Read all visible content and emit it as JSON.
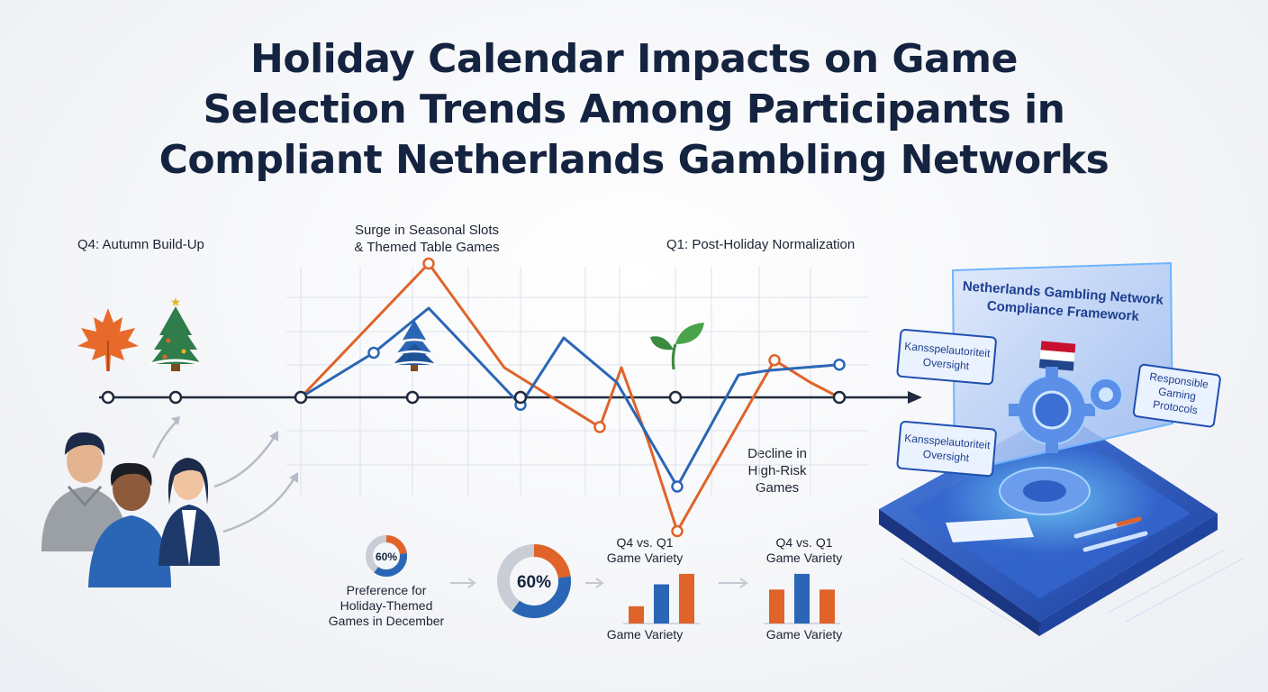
{
  "title": {
    "line1": "Holiday Calendar Impacts on Game",
    "line2": "Selection Trends Among Participants in",
    "line3": "Compliant Netherlands Gambling Networks"
  },
  "chart_data": {
    "type": "line",
    "title": "Holiday Calendar Impacts on Game Selection Trends Among Participants in Compliant Netherlands Gambling Networks",
    "xlabel": "",
    "ylabel": "",
    "grid": true,
    "series": [
      {
        "color": "#e0632a",
        "values": [
          0,
          0.9,
          0.2,
          -0.2,
          0.2,
          -0.3,
          -0.9,
          0.25,
          0.1,
          0.0
        ]
      },
      {
        "color": "#2a66b5",
        "values": [
          0,
          0.3,
          0.6,
          -0.05,
          0.4,
          0.1,
          -0.6,
          0.15,
          0.18,
          0.22
        ]
      }
    ],
    "annotations": [
      {
        "text": "Q4: Autumn Build-Up"
      },
      {
        "text": "Surge in Seasonal Slots & Themed Table Games"
      },
      {
        "text": "Q1: Post-Holiday Normalization"
      },
      {
        "text": "Decline in High-Risk Games"
      }
    ]
  },
  "labels": {
    "q4": "Q4: Autumn Build-Up",
    "surge_line1": "Surge in Seasonal Slots",
    "surge_line2": "& Themed Table Games",
    "q1": "Q1: Post-Holiday Normalization",
    "decline_line1": "Decline in",
    "decline_line2": "High-Risk",
    "decline_line3": "Games"
  },
  "donut_small": {
    "value_label": "60%",
    "fraction": 0.6,
    "caption_line1": "Preference for",
    "caption_line2": "Holiday-Themed",
    "caption_line3": "Games in December"
  },
  "donut_large": {
    "value_label": "60%",
    "fraction": 0.6
  },
  "bar_chart_1": {
    "top_line1": "Q4 vs. Q1",
    "top_line2": "Game Variety",
    "bottom": "Game Variety",
    "values": [
      0.33,
      0.75,
      0.95
    ],
    "colors": [
      "#e0632a",
      "#2a66b5",
      "#e0632a"
    ]
  },
  "bar_chart_2": {
    "top_line1": "Q4 vs. Q1",
    "top_line2": "Game Variety",
    "bottom": "Game Variety",
    "values": [
      0.65,
      0.95,
      0.65
    ],
    "colors": [
      "#e0632a",
      "#2a66b5",
      "#e0632a"
    ]
  },
  "compliance_panel": {
    "heading_line1": "Netherlands Gambling Network",
    "heading_line2": "Compliance Framework",
    "card1_line1": "Kansspelautoriteit",
    "card1_line2": "Oversight",
    "card2_line1": "Responsible",
    "card2_line2": "Gaming",
    "card2_line3": "Protocols",
    "card3_line1": "Kansspelautoriteit",
    "card3_line2": "Oversight"
  },
  "colors": {
    "orange": "#e0632a",
    "blue": "#2a66b5",
    "navy": "#14233f"
  },
  "icons": [
    "maple-leaf-icon",
    "christmas-tree-icon",
    "snowy-tree-icon",
    "sprout-icon",
    "netherlands-flag-icon",
    "gear-icon"
  ]
}
